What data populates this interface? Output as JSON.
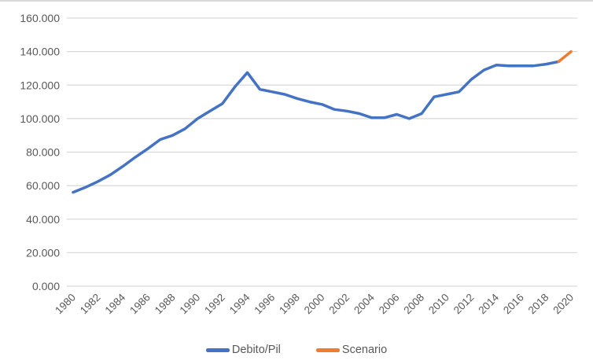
{
  "chart": {
    "background": "#FFFFFF",
    "border_color": "#D9D9D9",
    "grid_color": "#D9D9D9",
    "axis_text_color": "#595959",
    "legend": [
      {
        "label": "Debito/Pil",
        "color": "#4472C4"
      },
      {
        "label": "Scenario",
        "color": "#ED7D31"
      }
    ]
  },
  "chart_data": {
    "type": "line",
    "grid": true,
    "legend_position": "bottom",
    "ylim": [
      0,
      160
    ],
    "y_ticks": [
      0,
      20,
      40,
      60,
      80,
      100,
      120,
      140,
      160
    ],
    "y_tick_labels": [
      "0.000",
      "20.000",
      "40.000",
      "60.000",
      "80.000",
      "100.000",
      "120.000",
      "140.000",
      "160.000"
    ],
    "x": [
      1980,
      1981,
      1982,
      1983,
      1984,
      1985,
      1986,
      1987,
      1988,
      1989,
      1990,
      1991,
      1992,
      1993,
      1994,
      1995,
      1996,
      1997,
      1998,
      1999,
      2000,
      2001,
      2002,
      2003,
      2004,
      2005,
      2006,
      2007,
      2008,
      2009,
      2010,
      2011,
      2012,
      2013,
      2014,
      2015,
      2016,
      2017,
      2018,
      2019,
      2020
    ],
    "x_tick_years": [
      1980,
      1982,
      1984,
      1986,
      1988,
      1990,
      1992,
      1994,
      1996,
      1998,
      2000,
      2002,
      2004,
      2006,
      2008,
      2010,
      2012,
      2014,
      2016,
      2018,
      2020
    ],
    "x_tick_labels": [
      "1980",
      "1982",
      "1984",
      "1986",
      "1988",
      "1990",
      "1992",
      "1994",
      "1996",
      "1998",
      "2000",
      "2002",
      "2004",
      "2006",
      "2008",
      "2010",
      "2012",
      "2014",
      "2016",
      "2018",
      "2020"
    ],
    "series": [
      {
        "name": "Debito/Pil",
        "color": "#4472C4",
        "x_start": 1980,
        "values": [
          56,
          59,
          62.5,
          66.5,
          71.5,
          77,
          82,
          87.5,
          90,
          94,
          100,
          104.5,
          109,
          119,
          127.5,
          117.5,
          116,
          114.5,
          112,
          110,
          108.5,
          105.5,
          104.5,
          103,
          100.5,
          100.5,
          102.5,
          100,
          103,
          113,
          114.5,
          116,
          123.5,
          129,
          132,
          131.5,
          131.5,
          131.5,
          132.5,
          134
        ]
      },
      {
        "name": "Scenario",
        "color": "#ED7D31",
        "x_start": 2019,
        "values": [
          134,
          140
        ]
      }
    ]
  }
}
